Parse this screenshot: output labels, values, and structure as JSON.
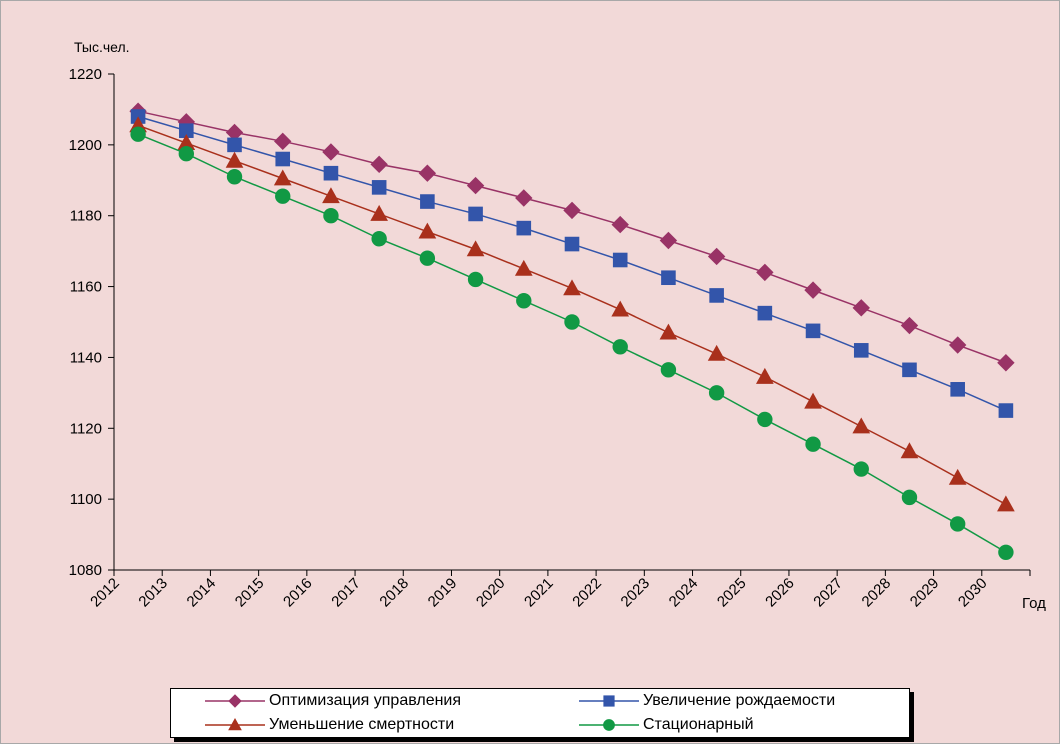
{
  "chart_data": {
    "type": "line",
    "ylabel": "Тыс.чел.",
    "xlabel": "Год",
    "ylim": [
      1080,
      1220
    ],
    "yticks": [
      1080,
      1100,
      1120,
      1140,
      1160,
      1180,
      1200,
      1220
    ],
    "categories": [
      "2012",
      "2013",
      "2014",
      "2015",
      "2016",
      "2017",
      "2018",
      "2019",
      "2020",
      "2021",
      "2022",
      "2023",
      "2024",
      "2025",
      "2026",
      "2027",
      "2028",
      "2029",
      "2030"
    ],
    "grid": false,
    "legend_position": "bottom",
    "series": [
      {
        "name": "Оптимизация управления",
        "color": "#993366",
        "marker": "diamond",
        "values": [
          1209.5,
          1206.5,
          1203.5,
          1201,
          1198,
          1194.5,
          1192,
          1188.5,
          1185,
          1181.5,
          1177.5,
          1173,
          1168.5,
          1164,
          1159,
          1154,
          1149,
          1143.5,
          1138.5
        ]
      },
      {
        "name": "Увеличение рождаемости",
        "color": "#3355aa",
        "marker": "square",
        "values": [
          1208,
          1204,
          1200,
          1196,
          1192,
          1188,
          1184,
          1180.5,
          1176.5,
          1172,
          1167.5,
          1162.5,
          1157.5,
          1152.5,
          1147.5,
          1142,
          1136.5,
          1131,
          1125
        ]
      },
      {
        "name": "Уменьшение смертности",
        "color": "#a9301c",
        "marker": "triangle",
        "values": [
          1205.5,
          1200.5,
          1195.5,
          1190.5,
          1185.5,
          1180.5,
          1175.5,
          1170.5,
          1165,
          1159.5,
          1153.5,
          1147,
          1141,
          1134.5,
          1127.5,
          1120.5,
          1113.5,
          1106,
          1098.5
        ]
      },
      {
        "name": "Стационарный",
        "color": "#119944",
        "marker": "circle",
        "values": [
          1203,
          1197.5,
          1191,
          1185.5,
          1180,
          1173.5,
          1168,
          1162,
          1156,
          1150,
          1143,
          1136.5,
          1130,
          1122.5,
          1115.5,
          1108.5,
          1100.5,
          1093,
          1085
        ]
      }
    ]
  }
}
